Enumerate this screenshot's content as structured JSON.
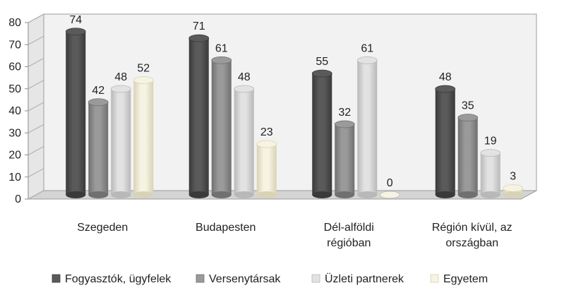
{
  "chart_data": {
    "type": "bar",
    "style": "3d-cylinder",
    "categories": [
      [
        "Szegeden"
      ],
      [
        "Budapesten"
      ],
      [
        "Dél-alföldi",
        "régióban"
      ],
      [
        "Régión kívül, az",
        "országban"
      ]
    ],
    "series": [
      {
        "name": "Fogyasztók, ügyfelek",
        "values": [
          74,
          71,
          55,
          48
        ]
      },
      {
        "name": "Versenytársak",
        "values": [
          42,
          61,
          32,
          35
        ]
      },
      {
        "name": "Üzleti partnerek",
        "values": [
          48,
          48,
          61,
          19
        ]
      },
      {
        "name": "Egyetem",
        "values": [
          52,
          23,
          0,
          3
        ]
      }
    ],
    "ylim": [
      0,
      80
    ],
    "yticks": [
      0,
      10,
      20,
      30,
      40,
      50,
      60,
      70,
      80
    ],
    "grid": false,
    "legend_position": "bottom",
    "colors": {
      "series": [
        "#5a5a5a",
        "#9a9a9a",
        "#e2e2e2",
        "#f6f3e2"
      ],
      "series_dark": [
        "#3a3a3a",
        "#707070",
        "#b8b8b8",
        "#d8d3b6"
      ],
      "wall": "#f2f2f2",
      "floor": "#d4d4d4",
      "axis": "#888888"
    }
  }
}
